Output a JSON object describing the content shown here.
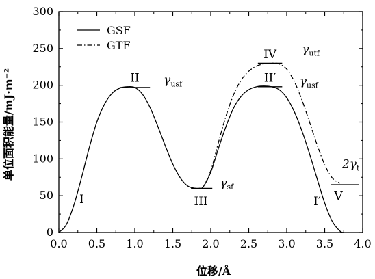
{
  "chart_data": {
    "type": "line",
    "xlabel": "位移/Å",
    "ylabel": "单位面积能量/mJ·m⁻²",
    "xlim": [
      0,
      4
    ],
    "ylim": [
      0,
      300
    ],
    "x_ticks": [
      "0.0",
      "0.5",
      "1.0",
      "1.5",
      "2.0",
      "2.5",
      "3.0",
      "3.5",
      "4.0"
    ],
    "y_ticks": [
      "0",
      "50",
      "100",
      "150",
      "200",
      "250",
      "300"
    ],
    "grid": false,
    "legend_position": "top-left",
    "series": [
      {
        "name": "GSF",
        "style": "solid",
        "color": "#000000",
        "x": [
          0.0,
          0.1,
          0.2,
          0.3,
          0.4,
          0.5,
          0.6,
          0.7,
          0.8,
          0.9,
          1.0,
          1.1,
          1.2,
          1.3,
          1.4,
          1.5,
          1.6,
          1.7,
          1.8,
          1.85,
          1.9,
          2.0,
          2.1,
          2.2,
          2.3,
          2.4,
          2.5,
          2.6,
          2.7,
          2.8,
          2.9,
          3.0,
          3.1,
          3.2,
          3.3,
          3.4,
          3.5,
          3.6,
          3.7,
          3.75
        ],
        "y": [
          0,
          11,
          38,
          75,
          115,
          150,
          174,
          189,
          196,
          198,
          197,
          188,
          170,
          145,
          118,
          93,
          74,
          63,
          60,
          60,
          62,
          82,
          114,
          144,
          169,
          185,
          194,
          198,
          199,
          198,
          194,
          183,
          164,
          138,
          107,
          73,
          40,
          15,
          2,
          0
        ]
      },
      {
        "name": "GTF",
        "style": "dashdot",
        "color": "#000000",
        "x": [
          1.85,
          1.9,
          2.0,
          2.1,
          2.2,
          2.3,
          2.4,
          2.5,
          2.6,
          2.7,
          2.8,
          2.85,
          2.9,
          3.0,
          3.1,
          3.2,
          3.3,
          3.4,
          3.5,
          3.6,
          3.7
        ],
        "y": [
          60,
          62,
          84,
          122,
          158,
          187,
          207,
          219,
          226,
          229,
          230,
          230,
          229,
          222,
          205,
          180,
          150,
          119,
          92,
          74,
          67
        ]
      }
    ],
    "annotations": [
      {
        "text": "I",
        "x": 0.3,
        "y": 40,
        "kind": "roman"
      },
      {
        "text": "II",
        "x": 1.0,
        "y": 205,
        "kind": "roman"
      },
      {
        "text": "III",
        "x": 1.87,
        "y": 37,
        "kind": "roman"
      },
      {
        "text": "II′",
        "x": 2.78,
        "y": 205,
        "kind": "roman"
      },
      {
        "text": "IV",
        "x": 2.78,
        "y": 237,
        "kind": "roman"
      },
      {
        "text": "I′",
        "x": 3.4,
        "y": 37,
        "kind": "roman"
      },
      {
        "text": "V",
        "x": 3.68,
        "y": 44,
        "kind": "roman"
      },
      {
        "text": "γ",
        "sub": "usf",
        "x": 1.38,
        "y": 202,
        "kind": "gamma"
      },
      {
        "text": "γ",
        "sub": "sf",
        "x": 2.12,
        "y": 62,
        "kind": "gamma"
      },
      {
        "text": "γ",
        "sub": "usf",
        "x": 3.17,
        "y": 200,
        "kind": "gamma"
      },
      {
        "text": "γ",
        "sub": "utf",
        "x": 3.2,
        "y": 244,
        "kind": "gamma"
      },
      {
        "text": "2γ",
        "sub": "t",
        "x": 3.73,
        "y": 88,
        "kind": "gamma"
      }
    ],
    "markers": [
      {
        "x1": 0.8,
        "x2": 1.2,
        "y": 197
      },
      {
        "x1": 1.74,
        "x2": 2.02,
        "y": 60
      },
      {
        "x1": 2.62,
        "x2": 2.94,
        "y": 198
      },
      {
        "x1": 2.62,
        "x2": 2.94,
        "y": 230
      },
      {
        "x1": 3.58,
        "x2": 3.95,
        "y": 65
      }
    ]
  }
}
